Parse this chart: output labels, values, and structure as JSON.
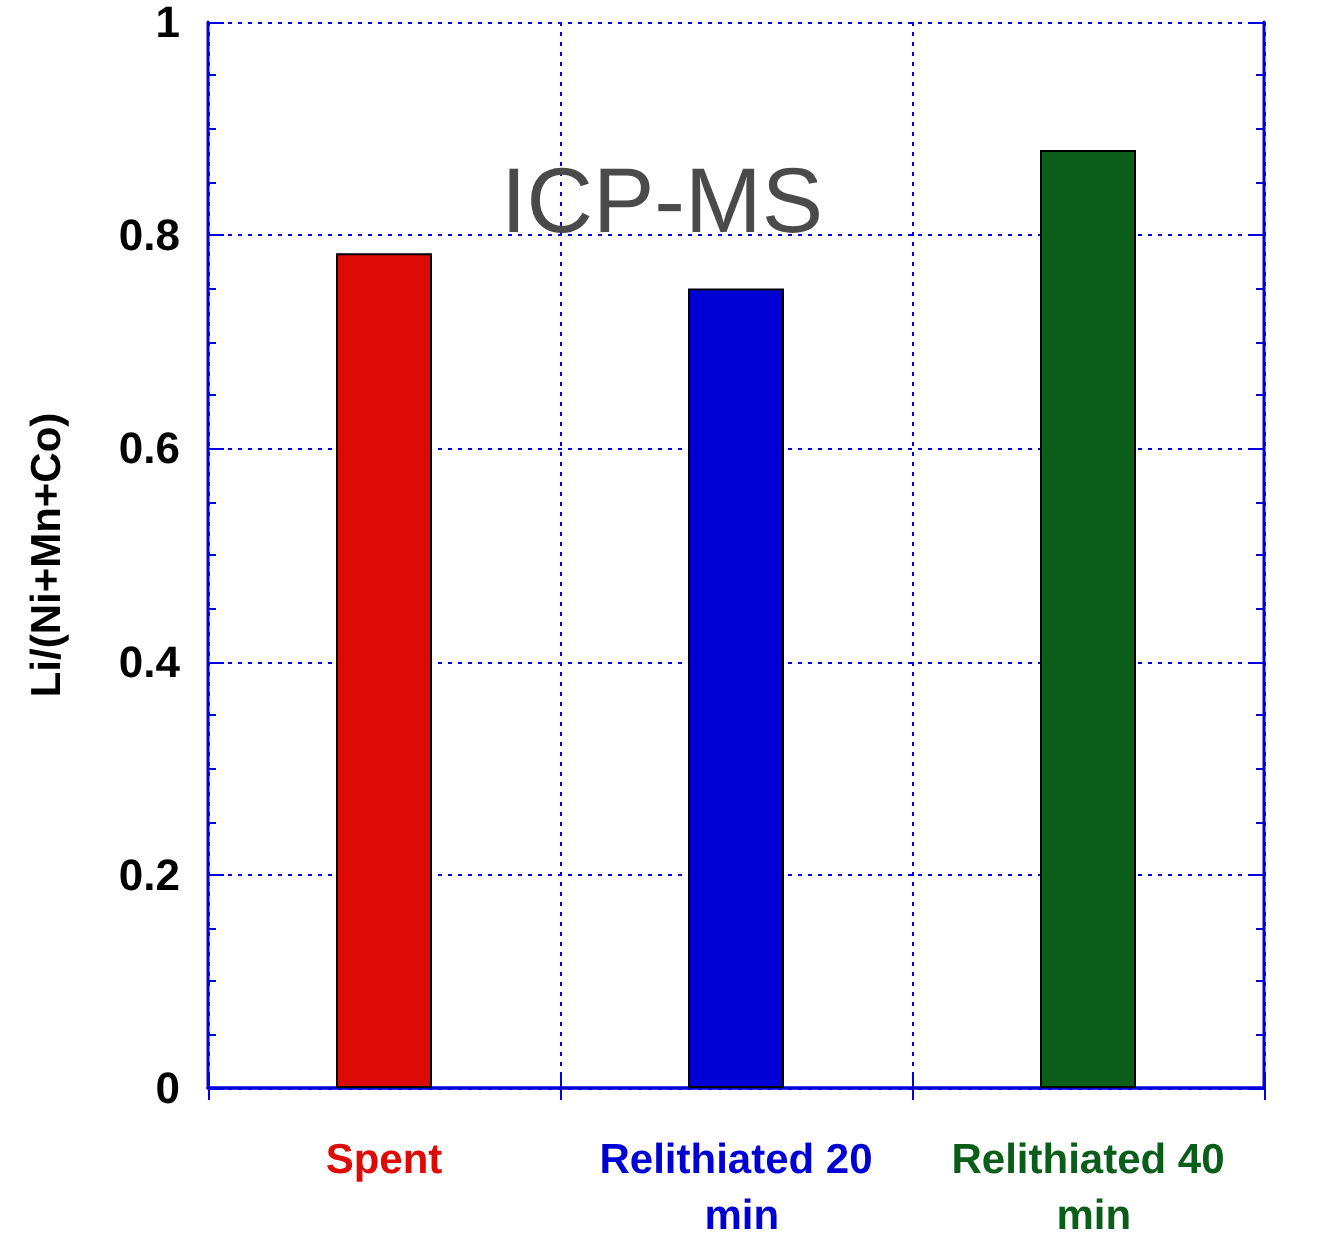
{
  "chart_data": {
    "type": "bar",
    "ylabel": "Li/(Ni+Mn+Co)",
    "annotations": [
      "ICP-MS"
    ],
    "categories": [
      "Spent",
      "Relithiated 20 min",
      "Relithiated 40 min"
    ],
    "values": [
      0.783,
      0.75,
      0.88
    ],
    "colors": [
      "#dd0a06",
      "#0000d4",
      "#0a5e1a"
    ],
    "ylim": [
      0,
      1
    ],
    "yticks": [
      0,
      0.2,
      0.4,
      0.6,
      0.8,
      1
    ],
    "grid": true
  }
}
